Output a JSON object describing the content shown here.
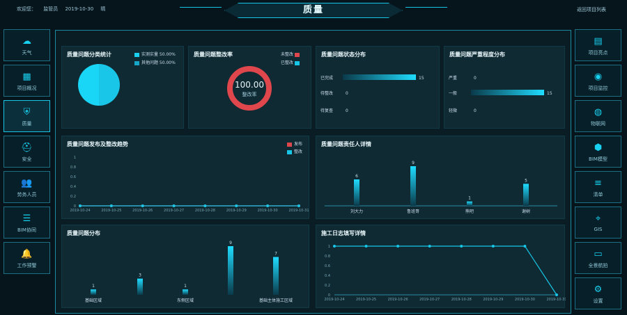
{
  "header": {
    "left_items": [
      "欢迎您：",
      "监管员",
      "2019-10-30",
      "晴"
    ],
    "title": "质量",
    "right_link": "返回项目列表"
  },
  "left_nav": [
    {
      "label": "天气",
      "icon": "cloud-icon"
    },
    {
      "label": "项目概况",
      "icon": "grid-icon"
    },
    {
      "label": "质量",
      "icon": "shield-icon",
      "active": true
    },
    {
      "label": "安全",
      "icon": "helmet-icon"
    },
    {
      "label": "劳务人员",
      "icon": "people-icon"
    },
    {
      "label": "BIM协同",
      "icon": "sliders-icon"
    },
    {
      "label": "工作预警",
      "icon": "bell-icon"
    }
  ],
  "right_nav": [
    {
      "label": "项目亮点",
      "icon": "document-icon"
    },
    {
      "label": "项目监控",
      "icon": "camera-icon"
    },
    {
      "label": "物联网",
      "icon": "globe-icon"
    },
    {
      "label": "BIM模型",
      "icon": "cube-icon"
    },
    {
      "label": "清单",
      "icon": "list-icon"
    },
    {
      "label": "GIS",
      "icon": "map-pin-icon"
    },
    {
      "label": "全景航拍",
      "icon": "panorama-icon"
    },
    {
      "label": "设置",
      "icon": "gear-icon"
    }
  ],
  "colors": {
    "accent": "#17c6e6",
    "red": "#e0474c",
    "bg": "#06141c"
  },
  "panels": {
    "category": {
      "title": "质量问题分类统计",
      "legend": [
        "实测实量 50.00%",
        "其他问题 50.00%"
      ]
    },
    "rectify_rate": {
      "title": "质量问题整改率",
      "value": "100.00",
      "sub": "整改率",
      "legend": [
        "未整改",
        "已整改"
      ]
    },
    "status": {
      "title": "质量问题状态分布"
    },
    "severity": {
      "title": "质量问题严重程度分布"
    },
    "trend": {
      "title": "质量问题发布及整改趋势",
      "legend": [
        "发布",
        "整改"
      ]
    },
    "responsible": {
      "title": "质量问题责任人详情"
    },
    "area": {
      "title": "质量问题分布"
    },
    "daily": {
      "title": "施工日志填写详情"
    }
  },
  "chart_data": [
    {
      "type": "pie",
      "title": "质量问题分类统计",
      "categories": [
        "实测实量",
        "其他问题"
      ],
      "values": [
        50,
        50
      ]
    },
    {
      "type": "bar",
      "orientation": "horizontal",
      "title": "质量问题状态分布",
      "categories": [
        "已完成",
        "待整改",
        "待复查"
      ],
      "values": [
        15,
        0,
        0
      ],
      "xlim": [
        0,
        15
      ]
    },
    {
      "type": "bar",
      "orientation": "horizontal",
      "title": "质量问题严重程度分布",
      "categories": [
        "严重",
        "一般",
        "轻微"
      ],
      "values": [
        0,
        15,
        0
      ],
      "xlim": [
        0,
        15
      ]
    },
    {
      "type": "line",
      "title": "质量问题发布及整改趋势",
      "x": [
        "2019-10-24",
        "2019-10-25",
        "2019-10-26",
        "2019-10-27",
        "2019-10-28",
        "2019-10-29",
        "2019-10-30",
        "2019-10-31"
      ],
      "series": [
        {
          "name": "发布",
          "values": [
            0,
            0,
            0,
            0,
            0,
            0,
            0,
            0
          ]
        },
        {
          "name": "整改",
          "values": [
            0,
            0,
            0,
            0,
            0,
            0,
            0,
            0
          ]
        }
      ],
      "yticks": [
        "0",
        "0.2",
        "0.4",
        "0.6",
        "0.8",
        "1"
      ],
      "ylim": [
        0,
        1
      ]
    },
    {
      "type": "bar",
      "title": "质量问题责任人详情",
      "categories": [
        "刘大力",
        "鲁班哥",
        "熊吧",
        "谢树"
      ],
      "values": [
        6,
        9,
        1,
        5
      ],
      "ylim": [
        0,
        9
      ]
    },
    {
      "type": "bar",
      "title": "质量问题分布",
      "categories": [
        "基础区域",
        "",
        "东侧区域",
        "",
        "基础主体施工区域"
      ],
      "values": [
        1,
        3,
        1,
        9,
        7
      ],
      "ylim": [
        0,
        9
      ]
    },
    {
      "type": "line",
      "title": "施工日志填写详情",
      "x": [
        "2019-10-24",
        "2019-10-25",
        "2019-10-26",
        "2019-10-27",
        "2019-10-28",
        "2019-10-29",
        "2019-10-30",
        "2019-10-31"
      ],
      "values": [
        1,
        1,
        1,
        1,
        1,
        1,
        1,
        0
      ],
      "yticks": [
        "0",
        "0.2",
        "0.4",
        "0.6",
        "0.8",
        "1"
      ],
      "ylim": [
        0,
        1
      ]
    }
  ]
}
